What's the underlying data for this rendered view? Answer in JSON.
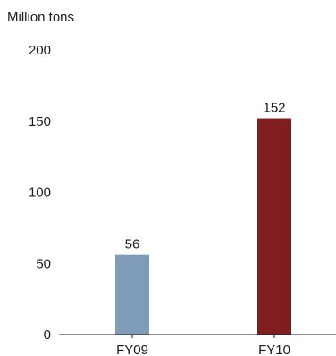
{
  "chart_data": {
    "type": "bar",
    "title": "",
    "ylabel": "Million tons",
    "xlabel": "",
    "categories": [
      "FY09",
      "FY10"
    ],
    "values": [
      56,
      152
    ],
    "data_labels": [
      "56",
      "152"
    ],
    "bar_colors": [
      "#7f9db8",
      "#7e1e1f"
    ],
    "ylim": [
      0,
      200
    ],
    "y_ticks": [
      0,
      50,
      100,
      150,
      200
    ],
    "grid": false,
    "legend": "none"
  }
}
